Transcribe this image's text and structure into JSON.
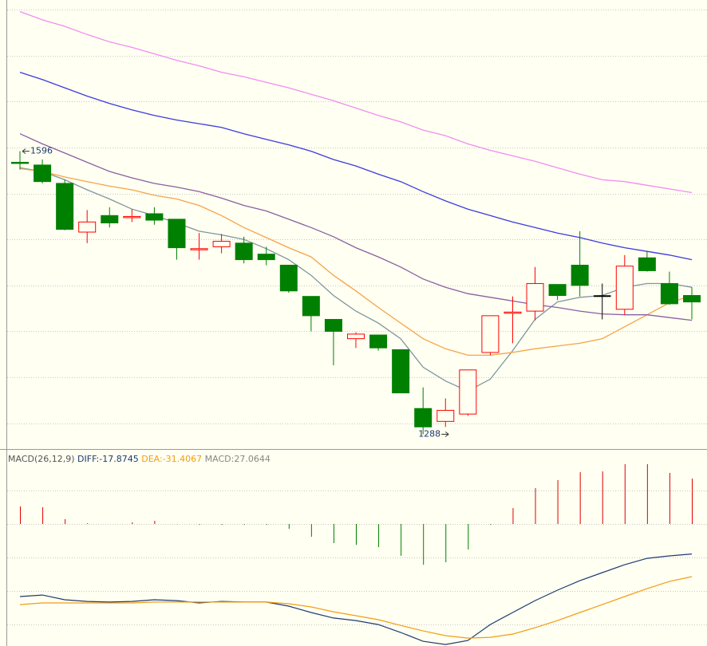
{
  "chart_data": [
    {
      "type": "candlestick",
      "open": [
        1584,
        1581,
        1561,
        1508,
        1526,
        1524,
        1528,
        1522,
        1489,
        1492,
        1496,
        1484,
        1472,
        1438,
        1413,
        1392,
        1396,
        1380,
        1316,
        1302,
        1310,
        1377,
        1420,
        1422,
        1451,
        1472,
        1439,
        1424,
        1480,
        1452,
        1439
      ],
      "high": [
        1596,
        1587,
        1565,
        1532,
        1535,
        1533,
        1535,
        1522,
        1507,
        1506,
        1503,
        1492,
        1472,
        1438,
        1413,
        1399,
        1396,
        1380,
        1339,
        1327,
        1358,
        1417,
        1438,
        1470,
        1451,
        1509,
        1452,
        1483,
        1487,
        1465,
        1448
      ],
      "low": [
        1576,
        1561,
        1510,
        1496,
        1513,
        1519,
        1516,
        1478,
        1478,
        1485,
        1474,
        1472,
        1442,
        1400,
        1363,
        1382,
        1379,
        1333,
        1288,
        1296,
        1308,
        1374,
        1387,
        1412,
        1434,
        1438,
        1413,
        1418,
        1465,
        1429,
        1413
      ],
      "close": [
        1583,
        1563,
        1511,
        1519,
        1518,
        1525,
        1521,
        1491,
        1490,
        1498,
        1478,
        1478,
        1444,
        1417,
        1400,
        1397,
        1382,
        1333,
        1296,
        1314,
        1358,
        1417,
        1421,
        1452,
        1439,
        1450,
        1439,
        1471,
        1466,
        1430,
        1432
      ],
      "up_color": "#ff0000",
      "down_color": "#008000",
      "flat_color": "#000000",
      "lines": [
        {
          "color": "#7f959e",
          "values": [
            1578,
            1574,
            1565,
            1554,
            1544,
            1533,
            1526,
            1518,
            1509,
            1505,
            1500,
            1490,
            1478,
            1461,
            1439,
            1422,
            1409,
            1392,
            1361,
            1346,
            1335,
            1348,
            1379,
            1413,
            1432,
            1437,
            1439,
            1448,
            1452,
            1452,
            1448
          ]
        },
        {
          "color": "#f5a447",
          "values": [
            1577,
            1574,
            1568,
            1563,
            1558,
            1554,
            1548,
            1544,
            1537,
            1526,
            1513,
            1502,
            1491,
            1481,
            1461,
            1444,
            1426,
            1409,
            1392,
            1381,
            1374,
            1374,
            1377,
            1381,
            1384,
            1387,
            1392,
            1405,
            1418,
            1431,
            1439
          ]
        },
        {
          "color": "#8a5fa0",
          "values": [
            1615,
            1604,
            1594,
            1584,
            1574,
            1567,
            1561,
            1557,
            1552,
            1545,
            1537,
            1531,
            1522,
            1513,
            1503,
            1491,
            1481,
            1470,
            1457,
            1448,
            1441,
            1437,
            1433,
            1429,
            1426,
            1422,
            1419,
            1418,
            1418,
            1415,
            1412
          ]
        },
        {
          "color": "#3b3bdf",
          "values": [
            1682,
            1674,
            1665,
            1656,
            1648,
            1641,
            1635,
            1630,
            1626,
            1622,
            1615,
            1609,
            1603,
            1596,
            1587,
            1580,
            1571,
            1563,
            1552,
            1542,
            1533,
            1526,
            1519,
            1513,
            1507,
            1502,
            1496,
            1491,
            1487,
            1483,
            1478
          ]
        },
        {
          "color": "#f28cf2",
          "values": [
            1748,
            1739,
            1732,
            1723,
            1715,
            1709,
            1702,
            1695,
            1689,
            1682,
            1677,
            1671,
            1665,
            1658,
            1651,
            1643,
            1635,
            1628,
            1619,
            1613,
            1604,
            1597,
            1591,
            1585,
            1578,
            1571,
            1565,
            1563,
            1559,
            1555,
            1551
          ]
        }
      ],
      "max_label": 1596,
      "max_index": 0,
      "min_label": 1288,
      "min_index": 18,
      "ylim": [
        1272.8,
        1760.6
      ],
      "ygrid": [
        1300,
        1350,
        1400,
        1450,
        1500,
        1550,
        1600,
        1650,
        1700,
        1750
      ]
    },
    {
      "type": "macd",
      "title": "MACD(26,12,9)",
      "bar_label": "MACD:27.0644",
      "bar_label_color": "#888888",
      "bars": [
        10.5,
        10,
        2.9,
        0.5,
        0,
        1,
        1.9,
        -0.2,
        -0.5,
        -0.5,
        -0.5,
        -0.5,
        -2.9,
        -7.6,
        -11.4,
        -12.4,
        -13.8,
        -19,
        -24.3,
        -22.8,
        -15.2,
        -0.5,
        9.5,
        21.4,
        26.2,
        30.9,
        31.4,
        35.7,
        35.7,
        30.5,
        27.0644
      ],
      "up_color": "#e00000",
      "down_color": "#008000",
      "series": [
        {
          "name": "DIFF:-17.8745",
          "color": "#1e3c6e",
          "values": [
            -43.3,
            -42.4,
            -45.2,
            -46.2,
            -46.6,
            -46.2,
            -45.2,
            -45.7,
            -47.1,
            -46.2,
            -46.6,
            -46.6,
            -49,
            -52.8,
            -56.1,
            -57.6,
            -60,
            -64.7,
            -70,
            -71.9,
            -69.5,
            -60,
            -52.8,
            -45.7,
            -39.5,
            -33.8,
            -29,
            -24.3,
            -20.5,
            -19,
            -17.8745
          ]
        },
        {
          "name": "DEA:-31.4067",
          "color": "#f39c12",
          "values": [
            -48.1,
            -47.1,
            -47.1,
            -47.1,
            -47.1,
            -47.1,
            -46.6,
            -46.6,
            -46.6,
            -46.6,
            -46.6,
            -46.6,
            -47.6,
            -49.5,
            -52.4,
            -54.7,
            -57.1,
            -60.5,
            -63.8,
            -66.6,
            -68.1,
            -67.6,
            -65.7,
            -61.9,
            -57.6,
            -52.8,
            -48.1,
            -43.3,
            -38.6,
            -34.3,
            -31.4067
          ]
        }
      ],
      "ylim": [
        -72.8,
        43.8
      ],
      "ygrid": [
        20,
        0,
        -20,
        -40,
        -60
      ]
    }
  ]
}
